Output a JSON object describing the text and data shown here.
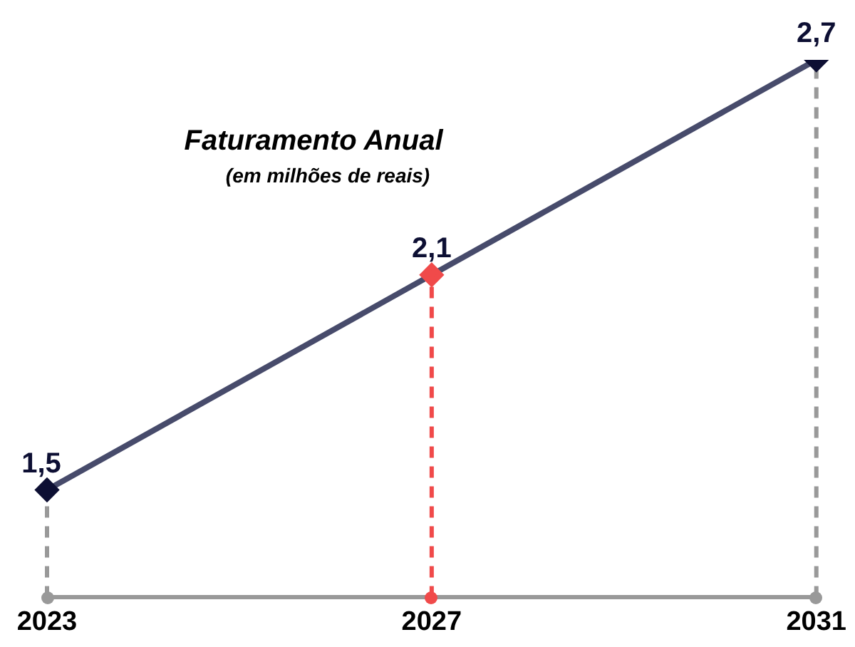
{
  "chart_data": {
    "type": "line",
    "title": "Faturamento Anual",
    "subtitle": "(em milhões de reais)",
    "categories": [
      "2023",
      "2027",
      "2031"
    ],
    "series": [
      {
        "color": "#474b6b",
        "colors": [
          "#0d0f33",
          "#f04a4a",
          "#0d0f33"
        ],
        "values": [
          1.5,
          2.1,
          2.7
        ],
        "value_labels": [
          "1,5",
          "2,1",
          "2,7"
        ]
      }
    ],
    "ylim": [
      1.2,
      2.7
    ],
    "tick_labels": "x",
    "grid": false,
    "legend": false,
    "marker": "diamond",
    "line_style": "solid",
    "ref_lines": [
      {
        "axis": "x",
        "value": "2023",
        "color": "#999999",
        "line_style": "dashed"
      },
      {
        "axis": "x",
        "value": "2027",
        "color": "#f04a4a",
        "line_style": "dashed"
      },
      {
        "axis": "x",
        "value": "2031",
        "color": "#999999",
        "line_style": "dashed"
      }
    ]
  }
}
